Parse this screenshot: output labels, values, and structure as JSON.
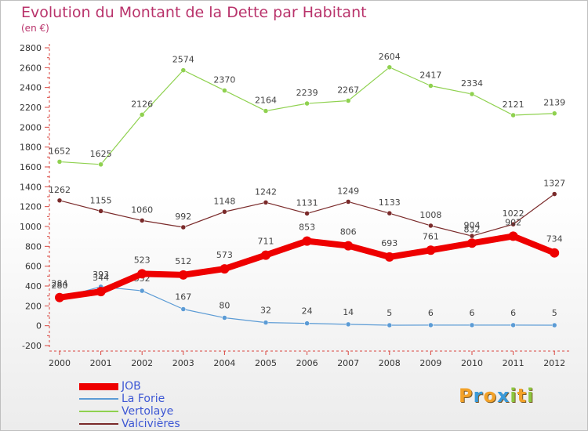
{
  "chart_data": {
    "type": "line",
    "title": "Evolution du Montant de la Dette par Habitant",
    "subtitle": "(en €)",
    "x": [
      "2000",
      "2001",
      "2002",
      "2003",
      "2004",
      "2005",
      "2006",
      "2007",
      "2008",
      "2009",
      "2010",
      "2011",
      "2012"
    ],
    "ylim": [
      -200,
      2800
    ],
    "yticks": [
      -200,
      0,
      200,
      400,
      600,
      800,
      1000,
      1200,
      1400,
      1600,
      1800,
      2000,
      2200,
      2400,
      2600,
      2800
    ],
    "grid": false,
    "legend_position": "bottom-left",
    "series": [
      {
        "name": "Vertolaye",
        "color": "#8fd14f",
        "values": [
          1652,
          1625,
          2126,
          2574,
          2370,
          2164,
          2239,
          2267,
          2604,
          2417,
          2334,
          2121,
          2139
        ]
      },
      {
        "name": "Valcivières",
        "color": "#7a2a2a",
        "values": [
          1262,
          1155,
          1060,
          992,
          1148,
          1242,
          1131,
          1249,
          1133,
          1008,
          904,
          1022,
          1327
        ]
      },
      {
        "name": "La Forie",
        "color": "#5b9bd5",
        "values": [
          280,
          393,
          352,
          167,
          80,
          32,
          24,
          14,
          5,
          6,
          6,
          6,
          5
        ]
      },
      {
        "name": "JOB",
        "color": "#ee0000",
        "values": [
          284,
          344,
          523,
          512,
          573,
          711,
          853,
          806,
          693,
          761,
          832,
          902,
          734
        ]
      }
    ]
  },
  "legend": [
    {
      "name": "JOB",
      "color": "#ee0000",
      "thickness": 9
    },
    {
      "name": "La Forie",
      "color": "#5b9bd5",
      "thickness": 2
    },
    {
      "name": "Vertolaye",
      "color": "#8fd14f",
      "thickness": 2
    },
    {
      "name": "Valcivières",
      "color": "#7a2a2a",
      "thickness": 2
    }
  ],
  "logo": {
    "letters": [
      "P",
      "r",
      "o",
      "x",
      "i",
      "t",
      "i"
    ],
    "colors": [
      "#f2a128",
      "#3a9ad9",
      "#f2a128",
      "#3a9ad9",
      "#8dc63f",
      "#f2a128",
      "#8dc63f"
    ]
  }
}
